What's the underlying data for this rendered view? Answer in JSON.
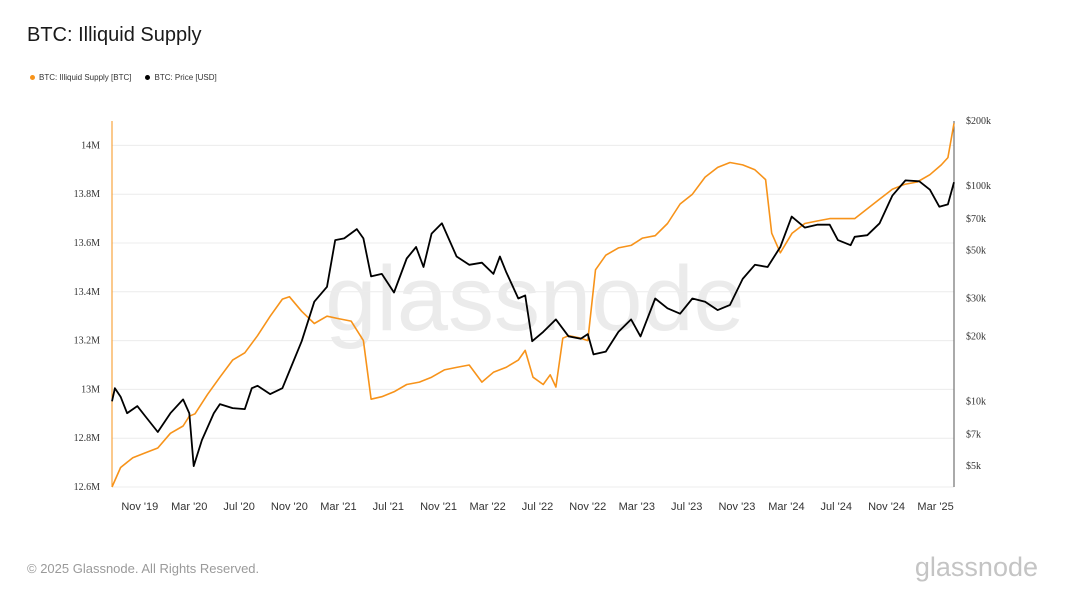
{
  "title": "BTC: Illiquid Supply",
  "footer": "© 2025 Glassnode. All Rights Reserved.",
  "brand": "glassnode",
  "watermark": "glassnode",
  "colors": {
    "supply": "#f7931a",
    "price": "#000000"
  },
  "chart_data": {
    "type": "line",
    "title": "BTC: Illiquid Supply",
    "x_ticks": [
      "Nov '19",
      "Mar '20",
      "Jul '20",
      "Nov '20",
      "Mar '21",
      "Jul '21",
      "Nov '21",
      "Mar '22",
      "Jul '22",
      "Nov '22",
      "Mar '23",
      "Jul '23",
      "Nov '23",
      "Mar '24",
      "Jul '24",
      "Nov '24",
      "Mar '25"
    ],
    "x_range": [
      "2019-08-25",
      "2025-04-15"
    ],
    "y_left": {
      "ticks": [
        "12.6M",
        "12.8M",
        "13M",
        "13.2M",
        "13.4M",
        "13.6M",
        "13.8M",
        "14M"
      ],
      "values": [
        12600000,
        12800000,
        13000000,
        13200000,
        13400000,
        13600000,
        13800000,
        14000000
      ],
      "range": [
        12600000,
        14100000
      ]
    },
    "y_right": {
      "scale": "log",
      "ticks": [
        "$5k",
        "$7k",
        "$10k",
        "$20k",
        "$30k",
        "$50k",
        "$70k",
        "$100k",
        "$200k"
      ],
      "values": [
        5000,
        7000,
        10000,
        20000,
        30000,
        50000,
        70000,
        100000,
        200000
      ],
      "range": [
        4000,
        200000
      ]
    },
    "grid": true,
    "legend_position": "top-left",
    "series": [
      {
        "name": "BTC: Illiquid Supply [BTC]",
        "axis": "left",
        "points": [
          [
            "2019-08-25",
            12600000
          ],
          [
            "2019-09-15",
            12680000
          ],
          [
            "2019-10-15",
            12720000
          ],
          [
            "2019-11-15",
            12740000
          ],
          [
            "2019-12-15",
            12760000
          ],
          [
            "2020-01-15",
            12820000
          ],
          [
            "2020-02-15",
            12850000
          ],
          [
            "2020-03-01",
            12890000
          ],
          [
            "2020-03-15",
            12900000
          ],
          [
            "2020-04-15",
            12980000
          ],
          [
            "2020-05-15",
            13050000
          ],
          [
            "2020-06-15",
            13120000
          ],
          [
            "2020-07-15",
            13150000
          ],
          [
            "2020-08-15",
            13220000
          ],
          [
            "2020-09-15",
            13300000
          ],
          [
            "2020-10-15",
            13370000
          ],
          [
            "2020-11-01",
            13380000
          ],
          [
            "2020-12-01",
            13320000
          ],
          [
            "2021-01-01",
            13270000
          ],
          [
            "2021-02-01",
            13300000
          ],
          [
            "2021-03-01",
            13290000
          ],
          [
            "2021-04-01",
            13280000
          ],
          [
            "2021-05-01",
            13200000
          ],
          [
            "2021-05-20",
            12960000
          ],
          [
            "2021-06-15",
            12970000
          ],
          [
            "2021-07-15",
            12990000
          ],
          [
            "2021-08-15",
            13020000
          ],
          [
            "2021-09-15",
            13030000
          ],
          [
            "2021-10-15",
            13050000
          ],
          [
            "2021-11-15",
            13080000
          ],
          [
            "2021-12-15",
            13090000
          ],
          [
            "2022-01-15",
            13100000
          ],
          [
            "2022-02-15",
            13030000
          ],
          [
            "2022-03-15",
            13070000
          ],
          [
            "2022-04-15",
            13090000
          ],
          [
            "2022-05-15",
            13120000
          ],
          [
            "2022-06-01",
            13160000
          ],
          [
            "2022-06-20",
            13050000
          ],
          [
            "2022-07-15",
            13020000
          ],
          [
            "2022-08-01",
            13060000
          ],
          [
            "2022-08-15",
            13010000
          ],
          [
            "2022-09-01",
            13210000
          ],
          [
            "2022-09-15",
            13220000
          ],
          [
            "2022-10-15",
            13210000
          ],
          [
            "2022-11-01",
            13200000
          ],
          [
            "2022-11-20",
            13490000
          ],
          [
            "2022-12-15",
            13550000
          ],
          [
            "2023-01-15",
            13580000
          ],
          [
            "2023-02-15",
            13590000
          ],
          [
            "2023-03-15",
            13620000
          ],
          [
            "2023-04-15",
            13630000
          ],
          [
            "2023-05-15",
            13680000
          ],
          [
            "2023-06-15",
            13760000
          ],
          [
            "2023-07-15",
            13800000
          ],
          [
            "2023-08-15",
            13870000
          ],
          [
            "2023-09-15",
            13910000
          ],
          [
            "2023-10-15",
            13930000
          ],
          [
            "2023-11-15",
            13920000
          ],
          [
            "2023-12-15",
            13900000
          ],
          [
            "2024-01-10",
            13860000
          ],
          [
            "2024-01-25",
            13640000
          ],
          [
            "2024-02-15",
            13560000
          ],
          [
            "2024-03-15",
            13640000
          ],
          [
            "2024-04-15",
            13680000
          ],
          [
            "2024-05-15",
            13690000
          ],
          [
            "2024-06-15",
            13700000
          ],
          [
            "2024-07-15",
            13700000
          ],
          [
            "2024-08-15",
            13700000
          ],
          [
            "2024-09-15",
            13740000
          ],
          [
            "2024-10-15",
            13780000
          ],
          [
            "2024-11-15",
            13820000
          ],
          [
            "2024-12-15",
            13840000
          ],
          [
            "2025-01-15",
            13850000
          ],
          [
            "2025-02-15",
            13880000
          ],
          [
            "2025-03-15",
            13920000
          ],
          [
            "2025-03-31",
            13950000
          ],
          [
            "2025-04-15",
            14090000
          ]
        ]
      },
      {
        "name": "BTC: Price [USD]",
        "axis": "right",
        "points": [
          [
            "2019-08-25",
            10000
          ],
          [
            "2019-09-01",
            11500
          ],
          [
            "2019-09-15",
            10500
          ],
          [
            "2019-10-01",
            8800
          ],
          [
            "2019-10-26",
            9500
          ],
          [
            "2019-11-15",
            8500
          ],
          [
            "2019-12-15",
            7200
          ],
          [
            "2020-01-15",
            8800
          ],
          [
            "2020-02-15",
            10200
          ],
          [
            "2020-03-01",
            8800
          ],
          [
            "2020-03-12",
            5000
          ],
          [
            "2020-04-01",
            6600
          ],
          [
            "2020-04-30",
            8800
          ],
          [
            "2020-05-15",
            9700
          ],
          [
            "2020-06-15",
            9300
          ],
          [
            "2020-07-15",
            9200
          ],
          [
            "2020-08-01",
            11500
          ],
          [
            "2020-08-15",
            11800
          ],
          [
            "2020-09-15",
            10800
          ],
          [
            "2020-10-15",
            11500
          ],
          [
            "2020-11-01",
            13800
          ],
          [
            "2020-12-01",
            19000
          ],
          [
            "2021-01-01",
            29000
          ],
          [
            "2021-02-01",
            34000
          ],
          [
            "2021-02-21",
            56000
          ],
          [
            "2021-03-15",
            57000
          ],
          [
            "2021-04-15",
            63000
          ],
          [
            "2021-05-01",
            57000
          ],
          [
            "2021-05-20",
            38000
          ],
          [
            "2021-06-15",
            39000
          ],
          [
            "2021-07-15",
            32000
          ],
          [
            "2021-08-15",
            46000
          ],
          [
            "2021-09-07",
            52000
          ],
          [
            "2021-09-25",
            42000
          ],
          [
            "2021-10-15",
            60000
          ],
          [
            "2021-11-09",
            67000
          ],
          [
            "2021-12-15",
            47000
          ],
          [
            "2022-01-15",
            43000
          ],
          [
            "2022-02-15",
            44000
          ],
          [
            "2022-03-15",
            39000
          ],
          [
            "2022-03-31",
            47000
          ],
          [
            "2022-04-15",
            40000
          ],
          [
            "2022-05-15",
            30000
          ],
          [
            "2022-06-01",
            31000
          ],
          [
            "2022-06-18",
            19000
          ],
          [
            "2022-07-15",
            21000
          ],
          [
            "2022-08-15",
            24000
          ],
          [
            "2022-09-15",
            20000
          ],
          [
            "2022-10-15",
            19500
          ],
          [
            "2022-11-01",
            20500
          ],
          [
            "2022-11-15",
            16500
          ],
          [
            "2022-12-15",
            17000
          ],
          [
            "2023-01-15",
            21000
          ],
          [
            "2023-02-15",
            24000
          ],
          [
            "2023-03-10",
            20000
          ],
          [
            "2023-04-15",
            30000
          ],
          [
            "2023-05-15",
            27000
          ],
          [
            "2023-06-15",
            25500
          ],
          [
            "2023-07-15",
            30000
          ],
          [
            "2023-08-15",
            29000
          ],
          [
            "2023-09-15",
            26500
          ],
          [
            "2023-10-15",
            28000
          ],
          [
            "2023-11-15",
            37000
          ],
          [
            "2023-12-15",
            43000
          ],
          [
            "2024-01-15",
            42000
          ],
          [
            "2024-02-15",
            52000
          ],
          [
            "2024-03-14",
            72000
          ],
          [
            "2024-04-15",
            64000
          ],
          [
            "2024-05-15",
            66000
          ],
          [
            "2024-06-15",
            66000
          ],
          [
            "2024-07-05",
            56000
          ],
          [
            "2024-08-05",
            53000
          ],
          [
            "2024-08-15",
            58000
          ],
          [
            "2024-09-15",
            59000
          ],
          [
            "2024-10-15",
            67000
          ],
          [
            "2024-11-15",
            90000
          ],
          [
            "2024-12-17",
            106000
          ],
          [
            "2025-01-20",
            105000
          ],
          [
            "2025-02-15",
            96000
          ],
          [
            "2025-03-10",
            80000
          ],
          [
            "2025-03-31",
            82000
          ],
          [
            "2025-04-15",
            104000
          ]
        ]
      }
    ]
  }
}
